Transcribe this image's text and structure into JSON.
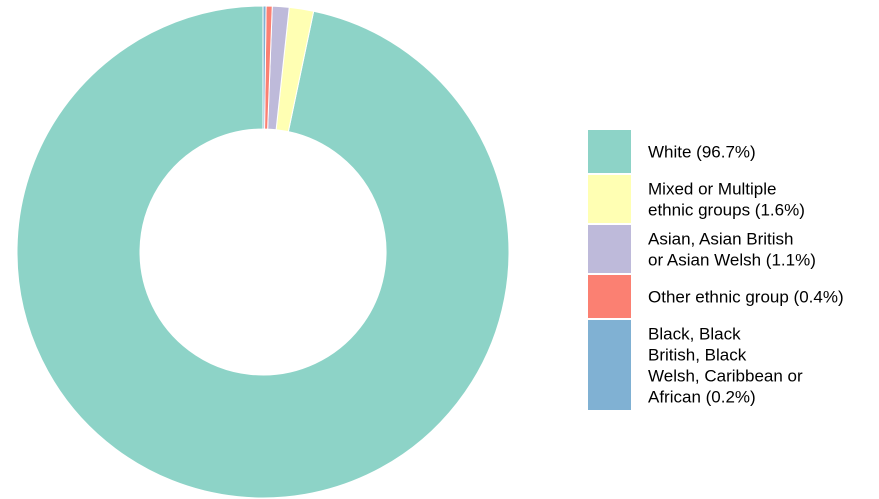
{
  "chart_data": {
    "type": "pie",
    "variant": "donut",
    "title": "",
    "legend_position": "right",
    "slices": [
      {
        "label_lines": [
          "White (96.7%)"
        ],
        "value": 96.7,
        "color": "#8dd3c7"
      },
      {
        "label_lines": [
          "Mixed or Multiple",
          "ethnic groups (1.6%)"
        ],
        "value": 1.6,
        "color": "#ffffb3"
      },
      {
        "label_lines": [
          "Asian, Asian British",
          "or Asian Welsh (1.1%)"
        ],
        "value": 1.1,
        "color": "#bebada"
      },
      {
        "label_lines": [
          "Other ethnic group (0.4%)"
        ],
        "value": 0.4,
        "color": "#fb8072"
      },
      {
        "label_lines": [
          "Black, Black",
          "British, Black",
          "Welsh, Caribbean or",
          "African (0.2%)"
        ],
        "value": 0.2,
        "color": "#80b1d3"
      }
    ]
  }
}
